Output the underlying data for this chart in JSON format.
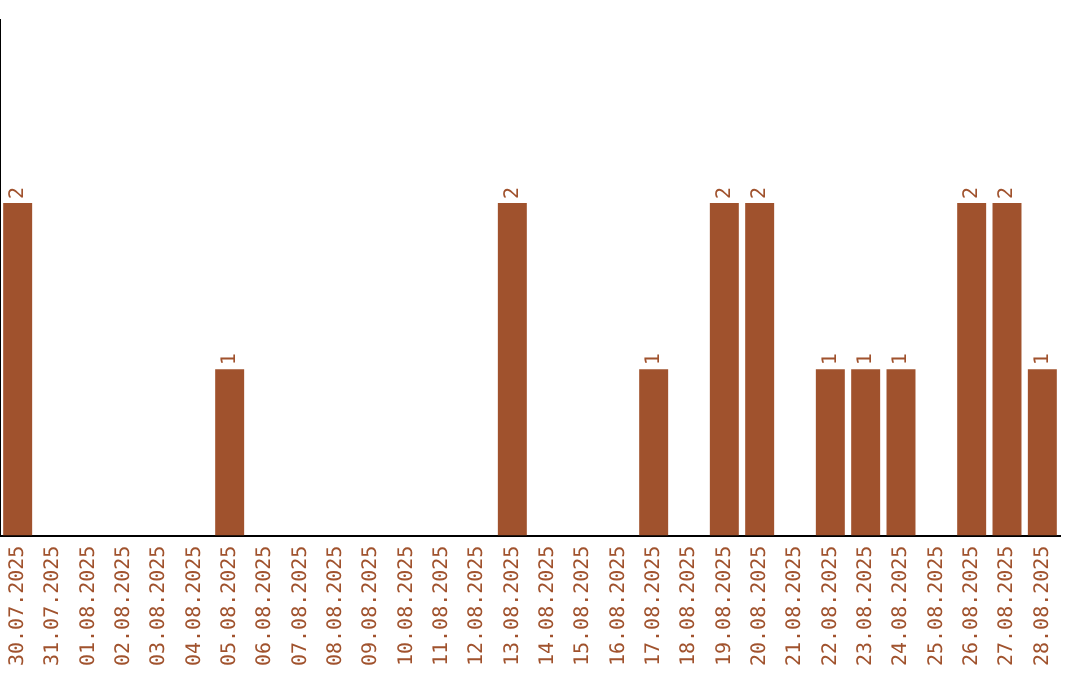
{
  "chart_data": {
    "type": "bar",
    "categories": [
      "30.07.2025",
      "31.07.2025",
      "01.08.2025",
      "02.08.2025",
      "03.08.2025",
      "04.08.2025",
      "05.08.2025",
      "06.08.2025",
      "07.08.2025",
      "08.08.2025",
      "09.08.2025",
      "10.08.2025",
      "11.08.2025",
      "12.08.2025",
      "13.08.2025",
      "14.08.2025",
      "15.08.2025",
      "16.08.2025",
      "17.08.2025",
      "18.08.2025",
      "19.08.2025",
      "20.08.2025",
      "21.08.2025",
      "22.08.2025",
      "23.08.2025",
      "24.08.2025",
      "25.08.2025",
      "26.08.2025",
      "27.08.2025",
      "28.08.2025"
    ],
    "values": [
      2,
      0,
      0,
      0,
      0,
      0,
      1,
      0,
      0,
      0,
      0,
      0,
      0,
      0,
      2,
      0,
      0,
      0,
      1,
      0,
      2,
      2,
      0,
      1,
      1,
      1,
      0,
      2,
      2,
      1
    ],
    "value_labels": [
      "2",
      null,
      null,
      null,
      null,
      null,
      "1",
      null,
      null,
      null,
      null,
      null,
      null,
      null,
      "2",
      null,
      null,
      null,
      "1",
      null,
      "2",
      "2",
      null,
      "1",
      "1",
      "1",
      null,
      "2",
      "2",
      "1"
    ],
    "color": "#a0522d",
    "ylim": [
      0,
      3.1
    ],
    "tick_labels": "x",
    "grid": false,
    "legend": false
  }
}
